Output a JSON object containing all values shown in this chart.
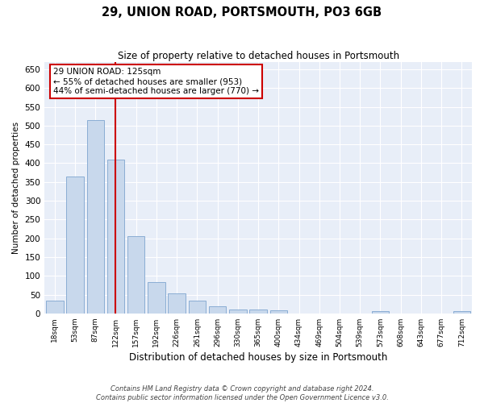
{
  "title1": "29, UNION ROAD, PORTSMOUTH, PO3 6GB",
  "title2": "Size of property relative to detached houses in Portsmouth",
  "xlabel": "Distribution of detached houses by size in Portsmouth",
  "ylabel": "Number of detached properties",
  "bar_color": "#c8d8ec",
  "bar_edge_color": "#8aadd4",
  "vline_color": "#cc0000",
  "vline_x": 3,
  "annotation_line1": "29 UNION ROAD: 125sqm",
  "annotation_line2": "← 55% of detached houses are smaller (953)",
  "annotation_line3": "44% of semi-detached houses are larger (770) →",
  "annotation_box_color": "#cc0000",
  "categories": [
    "18sqm",
    "53sqm",
    "87sqm",
    "122sqm",
    "157sqm",
    "192sqm",
    "226sqm",
    "261sqm",
    "296sqm",
    "330sqm",
    "365sqm",
    "400sqm",
    "434sqm",
    "469sqm",
    "504sqm",
    "539sqm",
    "573sqm",
    "608sqm",
    "643sqm",
    "677sqm",
    "712sqm"
  ],
  "values": [
    35,
    365,
    515,
    410,
    205,
    83,
    54,
    35,
    20,
    10,
    10,
    8,
    0,
    0,
    0,
    0,
    5,
    0,
    0,
    0,
    5
  ],
  "ylim": [
    0,
    670
  ],
  "yticks": [
    0,
    50,
    100,
    150,
    200,
    250,
    300,
    350,
    400,
    450,
    500,
    550,
    600,
    650
  ],
  "background_color": "#e8eef8",
  "grid_color": "#ffffff",
  "fig_background": "#ffffff",
  "footer1": "Contains HM Land Registry data © Crown copyright and database right 2024.",
  "footer2": "Contains public sector information licensed under the Open Government Licence v3.0."
}
